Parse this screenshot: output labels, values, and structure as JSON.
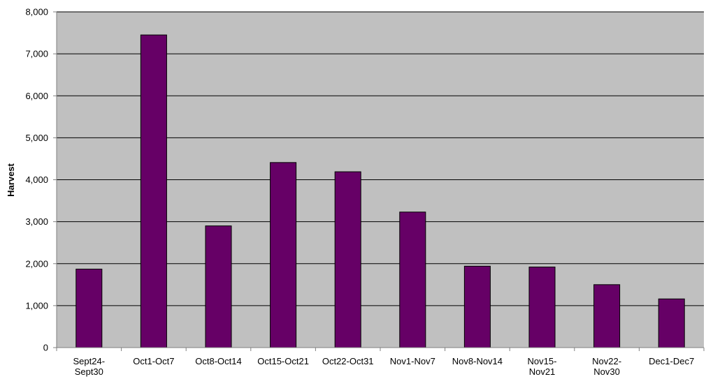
{
  "chart_data": {
    "type": "bar",
    "title": "",
    "xlabel": "",
    "ylabel": "Harvest",
    "categories": [
      [
        "Sept24-",
        "Sept30"
      ],
      [
        "Oct1-Oct7"
      ],
      [
        "Oct8-Oct14"
      ],
      [
        "Oct15-Oct21"
      ],
      [
        "Oct22-Oct31"
      ],
      [
        "Nov1-Nov7"
      ],
      [
        "Nov8-Nov14"
      ],
      [
        "Nov15-",
        "Nov21"
      ],
      [
        "Nov22-",
        "Nov30"
      ],
      [
        "Dec1-Dec7"
      ]
    ],
    "values": [
      1870,
      7450,
      2900,
      4410,
      4190,
      3230,
      1940,
      1920,
      1500,
      1160
    ],
    "ylim": [
      0,
      8000
    ],
    "yticks": [
      0,
      1000,
      2000,
      3000,
      4000,
      5000,
      6000,
      7000,
      8000
    ],
    "ytick_labels": [
      "0",
      "1,000",
      "2,000",
      "3,000",
      "4,000",
      "5,000",
      "6,000",
      "7,000",
      "8,000"
    ],
    "grid": true,
    "legend": "none",
    "colors": {
      "bar_fill": "#660066",
      "bar_stroke": "#000000",
      "plot_background": "#c0c0c0",
      "gridline": "#000000",
      "axis": "#808080"
    }
  }
}
